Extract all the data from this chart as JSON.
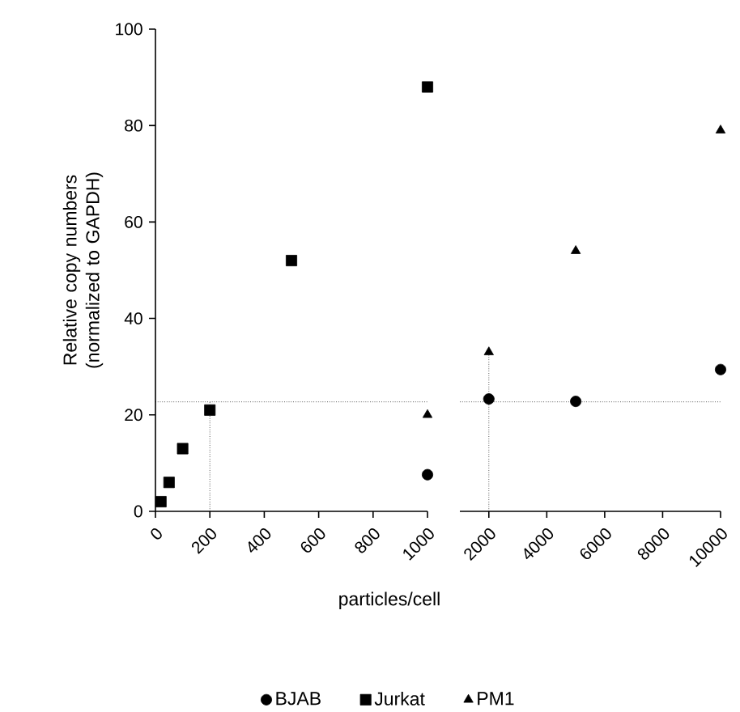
{
  "chart_data": [
    {
      "type": "scatter",
      "ylabel": "Relative copy numbers (normalized to GAPDH)",
      "xlabel": "particles/cell",
      "xlim": [
        0,
        1000
      ],
      "xticks": [
        0,
        200,
        400,
        600,
        800,
        1000
      ],
      "ylim": [
        0,
        100
      ],
      "yticks": [
        0,
        20,
        40,
        60,
        80,
        100
      ],
      "legend": "bottom",
      "grid": false,
      "series": [
        {
          "name": "BJAB",
          "color": "#000000",
          "marker": "circle",
          "x": [
            1000
          ],
          "values": [
            7.6
          ]
        },
        {
          "name": "Jurkat",
          "color": "#000000",
          "marker": "square",
          "x": [
            20,
            50,
            100,
            200,
            500,
            1000
          ],
          "values": [
            2,
            6,
            13,
            21,
            52,
            88
          ]
        },
        {
          "name": "PM1",
          "color": "#000000",
          "marker": "triangle",
          "x": [
            1000
          ],
          "values": [
            20
          ]
        }
      ],
      "ref_lines": [
        {
          "axis": "y",
          "value": 22.7,
          "line_style": "dotted",
          "color": "#000000"
        },
        {
          "axis": "x",
          "value": 200,
          "line_style": "dotted",
          "color": "#000000"
        }
      ]
    },
    {
      "type": "scatter",
      "xlim": [
        1000,
        10000
      ],
      "xticks": [
        2000,
        4000,
        6000,
        8000,
        10000
      ],
      "ylim": [
        0,
        100
      ],
      "yticks": [
        0,
        20,
        40,
        60,
        80,
        100
      ],
      "tick_labels": "x",
      "grid": false,
      "series": [
        {
          "color": "#000000",
          "marker": "circle",
          "x": [
            2000,
            5000,
            10000
          ],
          "values": [
            23.3,
            22.8,
            29.4
          ]
        },
        {
          "color": "#000000",
          "marker": "triangle",
          "x": [
            2000,
            5000,
            10000
          ],
          "values": [
            33,
            54,
            79
          ]
        }
      ],
      "ref_lines": [
        {
          "axis": "y",
          "value": 22.7,
          "line_style": "dotted",
          "color": "#000000"
        },
        {
          "axis": "x",
          "value": 2000,
          "line_style": "dotted",
          "color": "#000000"
        }
      ]
    }
  ]
}
